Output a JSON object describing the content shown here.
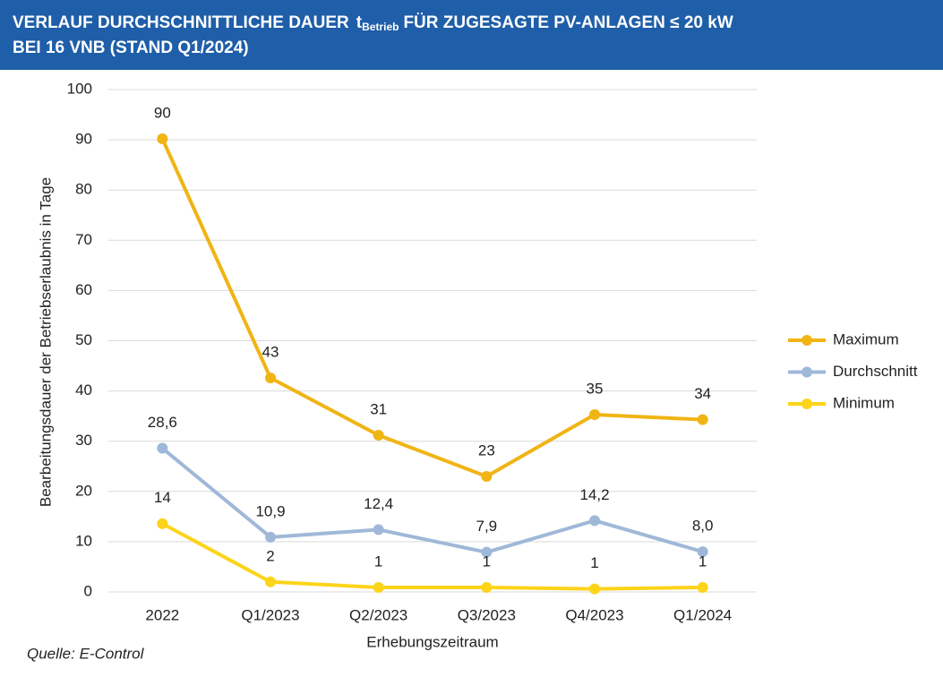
{
  "chart_data": {
    "type": "line",
    "title": [
      "VERLAUF DURCHSCHNITTLICHE DAUER",
      "t",
      "Betrieb",
      "FÜR ZUGESAGTE PV-ANLAGEN ≤ 20 kW",
      "BEI 16 VNB (STAND Q1/2024)"
    ],
    "y_label": "Bearbeitungsdauer der Betriebserlaubnis in Tage",
    "x_label": "Erhebungszeitraum",
    "source": "Quelle: E-Control",
    "categories": [
      "2022",
      "Q1/2023",
      "Q2/2023",
      "Q3/2023",
      "Q4/2023",
      "Q1/2024"
    ],
    "series": [
      {
        "name": "Maximum",
        "color": "#f0b414",
        "values": [
          90.2,
          42.6,
          31.2,
          23.0,
          35.3,
          34.3
        ],
        "value_labels": [
          "90",
          "43",
          "31",
          "23",
          "35",
          "34"
        ]
      },
      {
        "name": "Durchschnitt",
        "color": "#9fb8d8",
        "values": [
          28.6,
          10.9,
          12.4,
          7.9,
          14.2,
          8.0
        ],
        "value_labels": [
          "28,6",
          "10,9",
          "12,4",
          "7,9",
          "14,2",
          "8,0"
        ]
      },
      {
        "name": "Minimum",
        "color": "#fcd419",
        "values": [
          13.6,
          2.0,
          0.9,
          0.9,
          0.6,
          0.9
        ],
        "value_labels": [
          "14",
          "2",
          "1",
          "1",
          "1",
          "1"
        ]
      }
    ],
    "ylim": [
      0,
      100
    ],
    "yticks": [
      0,
      10,
      20,
      30,
      40,
      50,
      60,
      70,
      80,
      90,
      100
    ],
    "grid": true,
    "legend": "right"
  }
}
